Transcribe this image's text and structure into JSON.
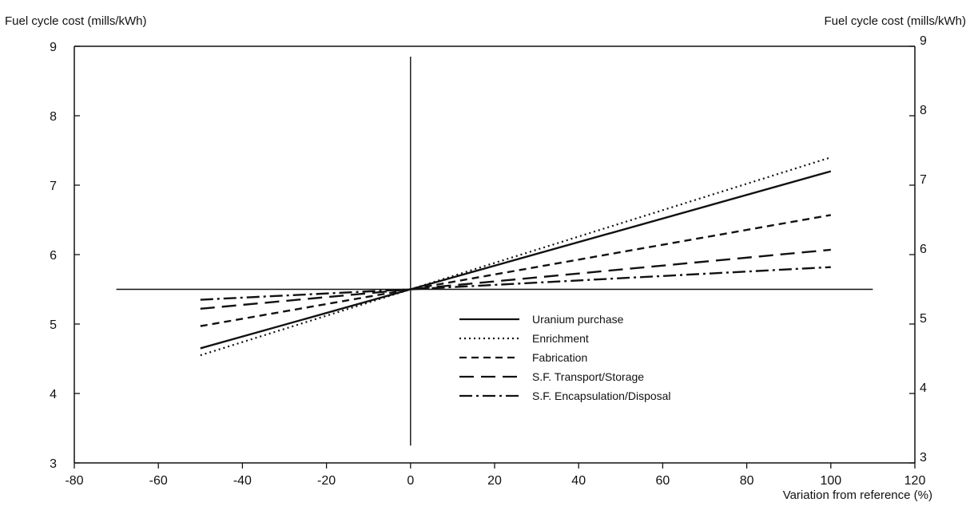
{
  "chart_data": {
    "type": "line",
    "ylabel_left": "Fuel cycle cost (mills/kWh)",
    "ylabel_right": "Fuel cycle cost (mills/kWh)",
    "xlabel": "Variation from reference (%)",
    "xlim": [
      -80,
      120
    ],
    "ylim": [
      3,
      9
    ],
    "xticks": [
      -80,
      -60,
      -40,
      -20,
      0,
      20,
      40,
      60,
      80,
      100,
      120
    ],
    "yticks": [
      3,
      4,
      5,
      6,
      7,
      8,
      9
    ],
    "reference_value": 5.5,
    "reference_line_x": [
      -70,
      110
    ],
    "legend_position": "center-right",
    "series": [
      {
        "name": "Uranium purchase",
        "style": "solid",
        "x": [
          -50,
          0,
          100
        ],
        "y": [
          4.65,
          5.5,
          7.2
        ]
      },
      {
        "name": "Enrichment",
        "style": "dotted",
        "x": [
          -50,
          0,
          100
        ],
        "y": [
          4.55,
          5.5,
          7.4
        ]
      },
      {
        "name": "Fabrication",
        "style": "dashed",
        "x": [
          -50,
          0,
          100
        ],
        "y": [
          4.97,
          5.5,
          6.57
        ]
      },
      {
        "name": "S.F. Transport/Storage",
        "style": "long-dashed",
        "x": [
          -50,
          0,
          100
        ],
        "y": [
          5.22,
          5.5,
          6.07
        ]
      },
      {
        "name": "S.F. Encapsulation/Disposal",
        "style": "dash-dot",
        "x": [
          -50,
          0,
          100
        ],
        "y": [
          5.35,
          5.5,
          5.82
        ]
      }
    ]
  }
}
